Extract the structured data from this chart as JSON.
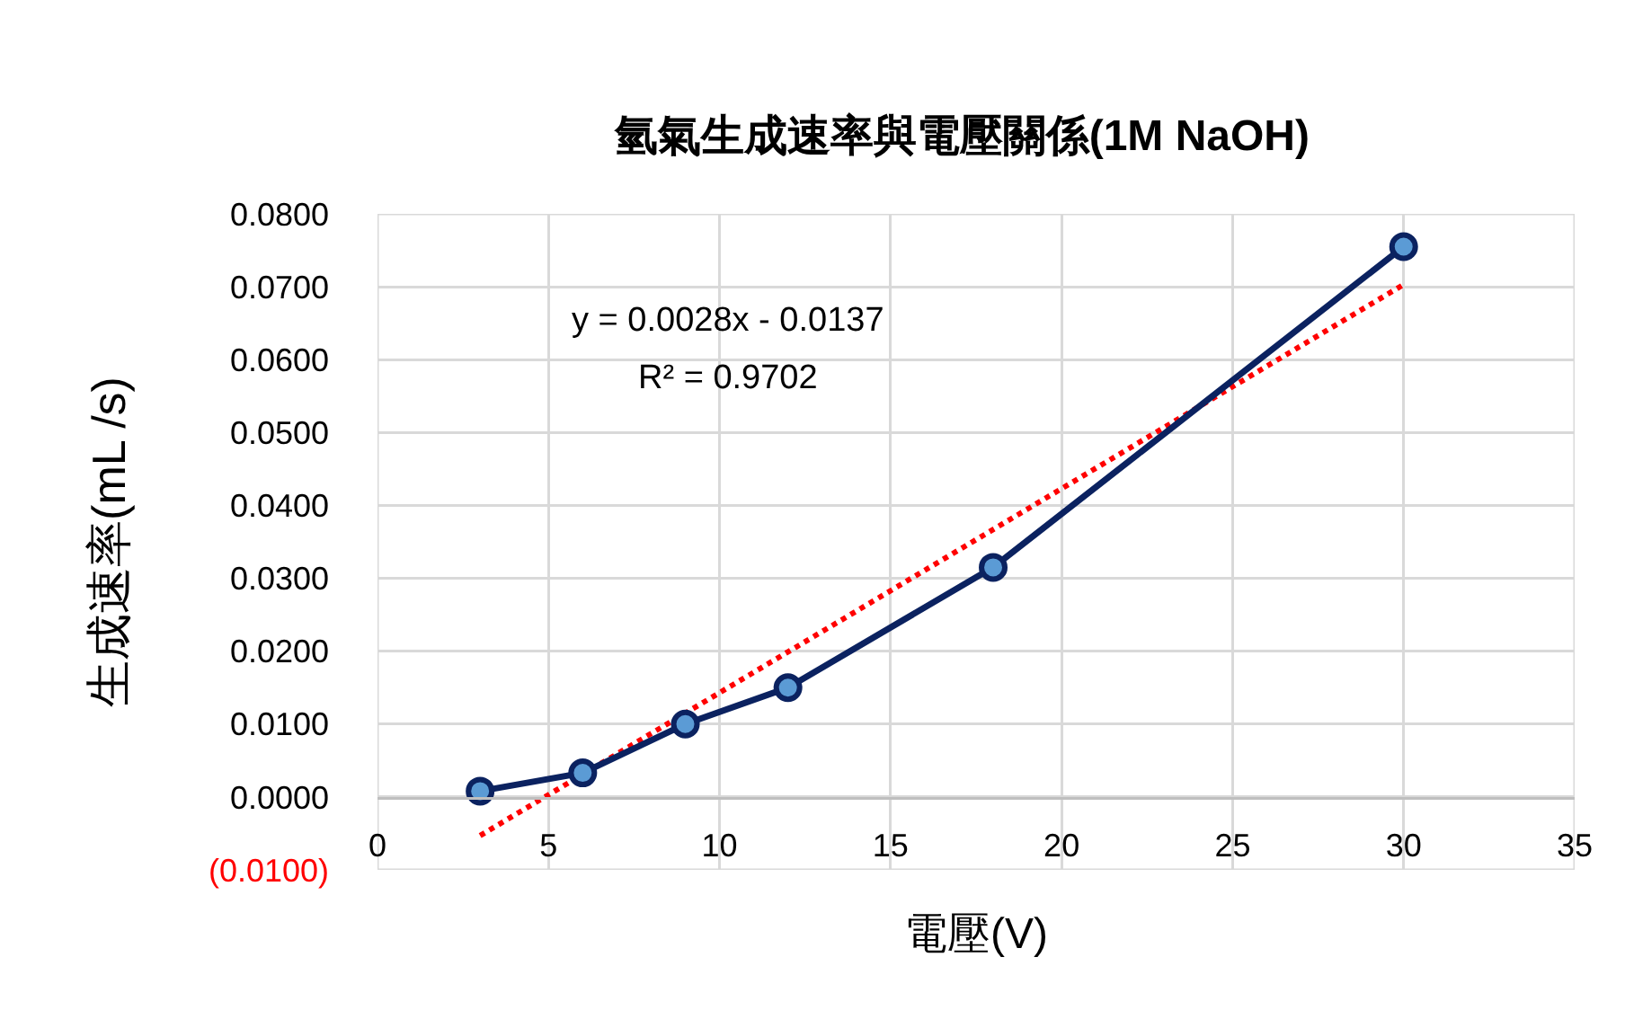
{
  "chart_data": {
    "type": "line",
    "title": "氫氣生成速率與電壓關係(1M NaOH)",
    "xlabel": "電壓(V)",
    "ylabel": "生成速率(mL /s)",
    "x": [
      3,
      6,
      9,
      12,
      18,
      30
    ],
    "series": [
      {
        "color": "#0b2260",
        "colors": [
          "#5b9bd5",
          "#5b9bd5",
          "#5b9bd5",
          "#5b9bd5",
          "#5b9bd5",
          "#5b9bd5"
        ],
        "values": [
          0.0008,
          0.0033,
          0.01,
          0.015,
          0.0315,
          0.0755
        ],
        "marker": "circle",
        "line_style": "solid"
      },
      {
        "type": "line",
        "x": [
          3,
          30
        ],
        "values": [
          -0.0053,
          0.0703
        ],
        "color": "#ff0000",
        "marker": "none",
        "line_style": "dotted"
      }
    ],
    "xlim": [
      0,
      35
    ],
    "xticks": [
      0,
      5,
      10,
      15,
      20,
      25,
      30,
      35
    ],
    "ylim": [
      -0.01,
      0.08
    ],
    "yticks": [
      {
        "value": -0.01,
        "label": "(0.0100)"
      },
      {
        "value": 0,
        "label": "0.0000"
      },
      {
        "value": 0.01,
        "label": "0.0100"
      },
      {
        "value": 0.02,
        "label": "0.0200"
      },
      {
        "value": 0.03,
        "label": "0.0300"
      },
      {
        "value": 0.04,
        "label": "0.0400"
      },
      {
        "value": 0.05,
        "label": "0.0500"
      },
      {
        "value": 0.06,
        "label": "0.0600"
      },
      {
        "value": 0.07,
        "label": "0.0700"
      },
      {
        "value": 0.08,
        "label": "0.0800"
      }
    ],
    "grid": true,
    "annotations": [
      "y = 0.0028x - 0.0137",
      "R² = 0.9702"
    ]
  }
}
